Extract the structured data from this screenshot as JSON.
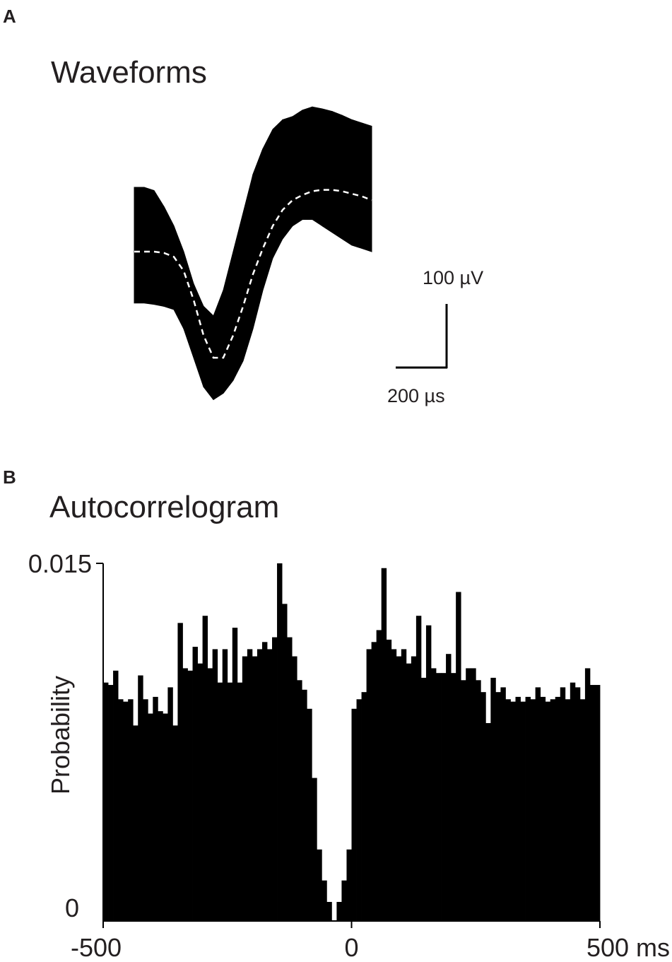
{
  "panel_a": {
    "letter": "A",
    "title": "Waveforms",
    "scale_bar": {
      "amplitude_label": "100 µV",
      "time_label": "200 µs"
    }
  },
  "panel_b": {
    "letter": "B",
    "title": "Autocorrelogram"
  },
  "colors": {
    "foreground": "#000000",
    "mean_line": "#ffffff",
    "text": "#231f20"
  },
  "chart_data": [
    {
      "type": "line",
      "title": "Waveforms",
      "description_units": {
        "x": "µs",
        "y": "µV"
      },
      "x": [
        0,
        40,
        80,
        120,
        160,
        200,
        240,
        280,
        320,
        360,
        400,
        440,
        480,
        520,
        560,
        600,
        640,
        680,
        720,
        760,
        800,
        840,
        880,
        920,
        960
      ],
      "series": [
        {
          "style": "mean-dashed-white",
          "values": [
            0,
            0,
            0,
            -2,
            -8,
            -30,
            -75,
            -130,
            -165,
            -165,
            -130,
            -85,
            -35,
            5,
            40,
            65,
            80,
            88,
            94,
            96,
            96,
            94,
            90,
            86,
            80
          ]
        }
      ],
      "envelope": {
        "upper": [
          100,
          100,
          95,
          70,
          40,
          0,
          -50,
          -85,
          -100,
          -60,
          0,
          60,
          120,
          160,
          190,
          205,
          210,
          220,
          225,
          222,
          218,
          212,
          205,
          200,
          195
        ],
        "lower": [
          -80,
          -80,
          -82,
          -85,
          -90,
          -120,
          -165,
          -210,
          -230,
          -220,
          -200,
          -170,
          -120,
          -60,
          -10,
          20,
          40,
          50,
          50,
          40,
          30,
          20,
          10,
          5,
          0
        ]
      }
    },
    {
      "type": "bar",
      "title": "Autocorrelogram",
      "ylabel": "Probability",
      "xlabel": "ms",
      "xlim": [
        -500,
        500
      ],
      "ylim": [
        0,
        0.015
      ],
      "xticks": [
        "-500",
        "0",
        "500 ms"
      ],
      "yticks": [
        "0",
        "0.015"
      ],
      "bin_width": 10,
      "x": [
        -500,
        -490,
        -480,
        -470,
        -460,
        -450,
        -440,
        -430,
        -420,
        -410,
        -400,
        -390,
        -380,
        -370,
        -360,
        -350,
        -340,
        -330,
        -320,
        -310,
        -300,
        -290,
        -280,
        -270,
        -260,
        -250,
        -240,
        -230,
        -220,
        -210,
        -200,
        -190,
        -180,
        -170,
        -160,
        -150,
        -140,
        -130,
        -120,
        -110,
        -100,
        -90,
        -80,
        -70,
        -60,
        -50,
        -40,
        -30,
        -20,
        -10,
        0,
        10,
        20,
        30,
        40,
        50,
        60,
        70,
        80,
        90,
        100,
        110,
        120,
        130,
        140,
        150,
        160,
        170,
        180,
        190,
        200,
        210,
        220,
        230,
        240,
        250,
        260,
        270,
        280,
        290,
        300,
        310,
        320,
        330,
        340,
        350,
        360,
        370,
        380,
        390,
        400,
        410,
        420,
        430,
        440,
        450,
        460,
        470,
        480,
        490
      ],
      "values": [
        0.01,
        0.0099,
        0.0105,
        0.0093,
        0.0092,
        0.0093,
        0.0082,
        0.0103,
        0.0093,
        0.0087,
        0.0094,
        0.0088,
        0.0087,
        0.0098,
        0.0082,
        0.0125,
        0.0106,
        0.0105,
        0.0115,
        0.0108,
        0.0128,
        0.0106,
        0.0114,
        0.01,
        0.0114,
        0.01,
        0.0123,
        0.01,
        0.0111,
        0.0114,
        0.0111,
        0.0114,
        0.0117,
        0.0114,
        0.0119,
        0.015,
        0.0133,
        0.0119,
        0.0111,
        0.0101,
        0.0097,
        0.0089,
        0.006,
        0.003,
        0.0017,
        0.0008,
        0.0,
        0.0008,
        0.0017,
        0.003,
        0.0089,
        0.0093,
        0.0096,
        0.0114,
        0.0117,
        0.0122,
        0.0148,
        0.0118,
        0.0114,
        0.0111,
        0.0114,
        0.0108,
        0.0111,
        0.0128,
        0.0102,
        0.0124,
        0.0106,
        0.0104,
        0.0104,
        0.0112,
        0.0104,
        0.0138,
        0.0101,
        0.0106,
        0.0106,
        0.0101,
        0.0096,
        0.0083,
        0.0102,
        0.0096,
        0.0098,
        0.0093,
        0.0092,
        0.0094,
        0.0092,
        0.0094,
        0.0093,
        0.0098,
        0.0094,
        0.0092,
        0.0093,
        0.0094,
        0.0098,
        0.0093,
        0.01,
        0.0098,
        0.0093,
        0.0106,
        0.0099,
        0.0099
      ]
    }
  ]
}
